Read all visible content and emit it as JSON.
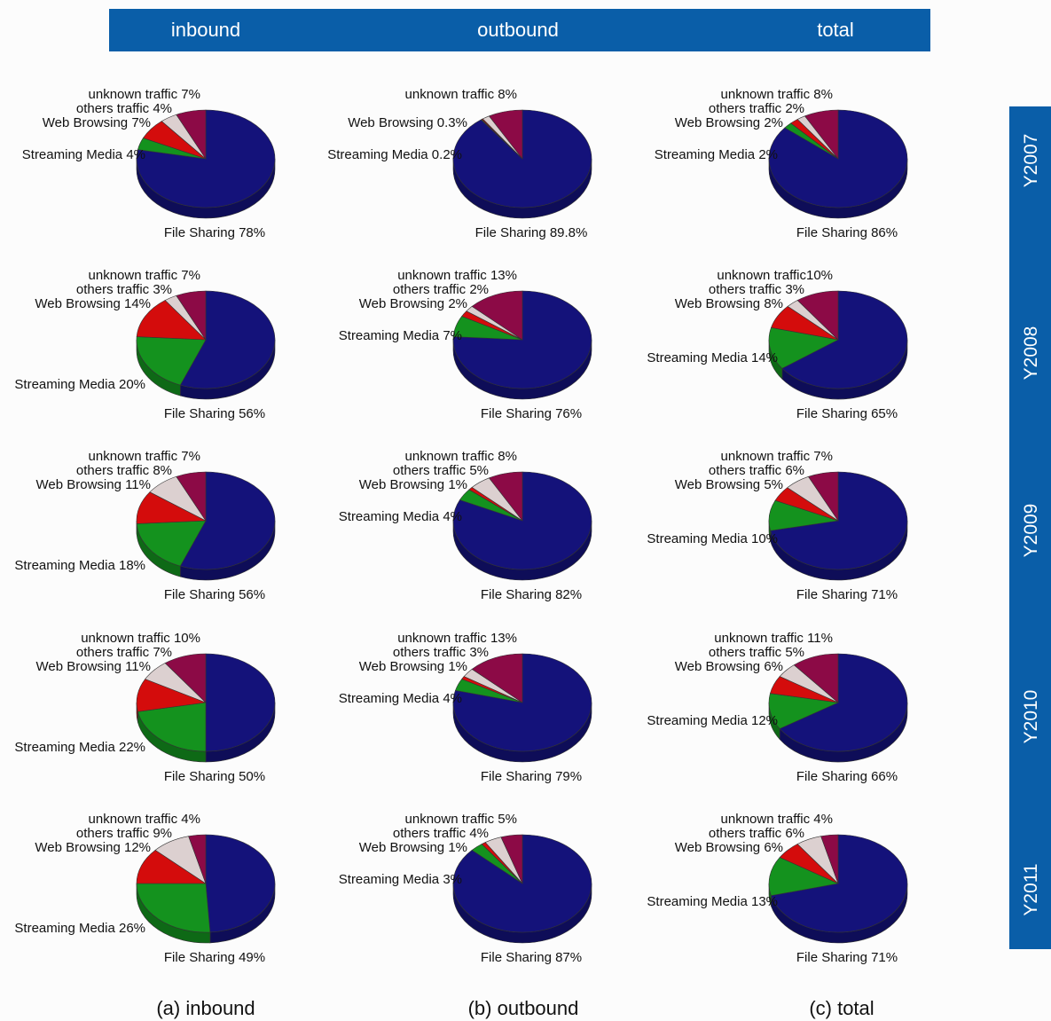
{
  "header": {
    "columns": [
      "inbound",
      "outbound",
      "total"
    ],
    "color": "#0a5ea8"
  },
  "side_bar": {
    "years": [
      "Y2007",
      "Y2008",
      "Y2009",
      "Y2010",
      "Y2011"
    ],
    "color": "#0a5ea8"
  },
  "captions": [
    "(a) inbound",
    "(b) outbound",
    "(c) total"
  ],
  "colors": {
    "File Sharing": "#14127a",
    "Streaming Media": "#14921e",
    "Web Browsing": "#d40c0c",
    "others traffic": "#dcd0d0",
    "unknown traffic": "#8c0a46"
  },
  "chart_data": [
    {
      "type": "pie",
      "column": "inbound",
      "year": "Y2007",
      "slices": [
        {
          "category": "File Sharing",
          "value": 78,
          "label": "File Sharing 78%"
        },
        {
          "category": "Streaming Media",
          "value": 4,
          "label": "Streaming Media 4%"
        },
        {
          "category": "Web Browsing",
          "value": 7,
          "label": "Web Browsing 7%"
        },
        {
          "category": "others traffic",
          "value": 4,
          "label": "others traffic 4%"
        },
        {
          "category": "unknown traffic",
          "value": 7,
          "label": "unknown traffic 7%"
        }
      ]
    },
    {
      "type": "pie",
      "column": "outbound",
      "year": "Y2007",
      "slices": [
        {
          "category": "File Sharing",
          "value": 89.8,
          "label": "File Sharing 89.8%"
        },
        {
          "category": "Streaming Media",
          "value": 0.2,
          "label": "Streaming Media 0.2%"
        },
        {
          "category": "Web Browsing",
          "value": 0.3,
          "label": "Web Browsing 0.3%"
        },
        {
          "category": "others traffic",
          "value": 1.7,
          "label": ""
        },
        {
          "category": "unknown traffic",
          "value": 8,
          "label": "unknown traffic 8%"
        }
      ]
    },
    {
      "type": "pie",
      "column": "total",
      "year": "Y2007",
      "slices": [
        {
          "category": "File Sharing",
          "value": 86,
          "label": "File Sharing 86%"
        },
        {
          "category": "Streaming Media",
          "value": 2,
          "label": "Streaming Media 2%"
        },
        {
          "category": "Web Browsing",
          "value": 2,
          "label": "Web Browsing 2%"
        },
        {
          "category": "others traffic",
          "value": 2,
          "label": "others traffic 2%"
        },
        {
          "category": "unknown traffic",
          "value": 8,
          "label": "unknown traffic 8%"
        }
      ]
    },
    {
      "type": "pie",
      "column": "inbound",
      "year": "Y2008",
      "slices": [
        {
          "category": "File Sharing",
          "value": 56,
          "label": "File Sharing 56%"
        },
        {
          "category": "Streaming Media",
          "value": 20,
          "label": "Streaming Media 20%"
        },
        {
          "category": "Web Browsing",
          "value": 14,
          "label": "Web Browsing 14%"
        },
        {
          "category": "others traffic",
          "value": 3,
          "label": "others traffic 3%"
        },
        {
          "category": "unknown traffic",
          "value": 7,
          "label": "unknown traffic 7%"
        }
      ]
    },
    {
      "type": "pie",
      "column": "outbound",
      "year": "Y2008",
      "slices": [
        {
          "category": "File Sharing",
          "value": 76,
          "label": "File Sharing 76%"
        },
        {
          "category": "Streaming Media",
          "value": 7,
          "label": "Streaming Media 7%"
        },
        {
          "category": "Web Browsing",
          "value": 2,
          "label": "Web Browsing 2%"
        },
        {
          "category": "others traffic",
          "value": 2,
          "label": "others traffic 2%"
        },
        {
          "category": "unknown traffic",
          "value": 13,
          "label": "unknown traffic 13%"
        }
      ]
    },
    {
      "type": "pie",
      "column": "total",
      "year": "Y2008",
      "slices": [
        {
          "category": "File Sharing",
          "value": 65,
          "label": "File Sharing 65%"
        },
        {
          "category": "Streaming Media",
          "value": 14,
          "label": "Streaming Media 14%"
        },
        {
          "category": "Web Browsing",
          "value": 8,
          "label": "Web Browsing 8%"
        },
        {
          "category": "others traffic",
          "value": 3,
          "label": "others traffic 3%"
        },
        {
          "category": "unknown traffic",
          "value": 10,
          "label": "unknown traffic10%"
        }
      ]
    },
    {
      "type": "pie",
      "column": "inbound",
      "year": "Y2009",
      "slices": [
        {
          "category": "File Sharing",
          "value": 56,
          "label": "File Sharing 56%"
        },
        {
          "category": "Streaming Media",
          "value": 18,
          "label": "Streaming Media 18%"
        },
        {
          "category": "Web Browsing",
          "value": 11,
          "label": "Web Browsing 11%"
        },
        {
          "category": "others traffic",
          "value": 8,
          "label": "others traffic 8%"
        },
        {
          "category": "unknown traffic",
          "value": 7,
          "label": "unknown traffic 7%"
        }
      ]
    },
    {
      "type": "pie",
      "column": "outbound",
      "year": "Y2009",
      "slices": [
        {
          "category": "File Sharing",
          "value": 82,
          "label": "File Sharing 82%"
        },
        {
          "category": "Streaming Media",
          "value": 4,
          "label": "Streaming Media 4%"
        },
        {
          "category": "Web Browsing",
          "value": 1,
          "label": "Web Browsing 1%"
        },
        {
          "category": "others traffic",
          "value": 5,
          "label": "others traffic 5%"
        },
        {
          "category": "unknown traffic",
          "value": 8,
          "label": "unknown traffic 8%"
        }
      ]
    },
    {
      "type": "pie",
      "column": "total",
      "year": "Y2009",
      "slices": [
        {
          "category": "File Sharing",
          "value": 71,
          "label": "File Sharing 71%"
        },
        {
          "category": "Streaming Media",
          "value": 10,
          "label": "Streaming Media 10%"
        },
        {
          "category": "Web Browsing",
          "value": 5,
          "label": "Web Browsing 5%"
        },
        {
          "category": "others traffic",
          "value": 6,
          "label": "others traffic 6%"
        },
        {
          "category": "unknown traffic",
          "value": 7,
          "label": "unknown traffic 7%"
        }
      ]
    },
    {
      "type": "pie",
      "column": "inbound",
      "year": "Y2010",
      "slices": [
        {
          "category": "File Sharing",
          "value": 50,
          "label": "File Sharing 50%"
        },
        {
          "category": "Streaming Media",
          "value": 22,
          "label": "Streaming Media 22%"
        },
        {
          "category": "Web Browsing",
          "value": 11,
          "label": "Web Browsing 11%"
        },
        {
          "category": "others traffic",
          "value": 7,
          "label": "others traffic 7%"
        },
        {
          "category": "unknown traffic",
          "value": 10,
          "label": "unknown traffic 10%"
        }
      ]
    },
    {
      "type": "pie",
      "column": "outbound",
      "year": "Y2010",
      "slices": [
        {
          "category": "File Sharing",
          "value": 79,
          "label": "File Sharing 79%"
        },
        {
          "category": "Streaming Media",
          "value": 4,
          "label": "Streaming Media 4%"
        },
        {
          "category": "Web Browsing",
          "value": 1,
          "label": "Web Browsing 1%"
        },
        {
          "category": "others traffic",
          "value": 3,
          "label": "others traffic 3%"
        },
        {
          "category": "unknown traffic",
          "value": 13,
          "label": "unknown traffic 13%"
        }
      ]
    },
    {
      "type": "pie",
      "column": "total",
      "year": "Y2010",
      "slices": [
        {
          "category": "File Sharing",
          "value": 66,
          "label": "File Sharing 66%"
        },
        {
          "category": "Streaming Media",
          "value": 12,
          "label": "Streaming Media 12%"
        },
        {
          "category": "Web Browsing",
          "value": 6,
          "label": "Web Browsing 6%"
        },
        {
          "category": "others traffic",
          "value": 5,
          "label": "others traffic 5%"
        },
        {
          "category": "unknown traffic",
          "value": 11,
          "label": "unknown traffic 11%"
        }
      ]
    },
    {
      "type": "pie",
      "column": "inbound",
      "year": "Y2011",
      "slices": [
        {
          "category": "File Sharing",
          "value": 49,
          "label": "File Sharing 49%"
        },
        {
          "category": "Streaming Media",
          "value": 26,
          "label": "Streaming Media 26%"
        },
        {
          "category": "Web Browsing",
          "value": 12,
          "label": "Web Browsing 12%"
        },
        {
          "category": "others traffic",
          "value": 9,
          "label": "others traffic 9%"
        },
        {
          "category": "unknown traffic",
          "value": 4,
          "label": "unknown traffic 4%"
        }
      ]
    },
    {
      "type": "pie",
      "column": "outbound",
      "year": "Y2011",
      "slices": [
        {
          "category": "File Sharing",
          "value": 87,
          "label": "File Sharing 87%"
        },
        {
          "category": "Streaming Media",
          "value": 3,
          "label": "Streaming Media 3%"
        },
        {
          "category": "Web Browsing",
          "value": 1,
          "label": "Web Browsing 1%"
        },
        {
          "category": "others traffic",
          "value": 4,
          "label": "others traffic 4%"
        },
        {
          "category": "unknown traffic",
          "value": 5,
          "label": "unknown traffic 5%"
        }
      ]
    },
    {
      "type": "pie",
      "column": "total",
      "year": "Y2011",
      "slices": [
        {
          "category": "File Sharing",
          "value": 71,
          "label": "File Sharing 71%"
        },
        {
          "category": "Streaming Media",
          "value": 13,
          "label": "Streaming Media 13%"
        },
        {
          "category": "Web Browsing",
          "value": 6,
          "label": "Web Browsing 6%"
        },
        {
          "category": "others traffic",
          "value": 6,
          "label": "others traffic 6%"
        },
        {
          "category": "unknown traffic",
          "value": 4,
          "label": "unknown traffic 4%"
        }
      ]
    }
  ]
}
